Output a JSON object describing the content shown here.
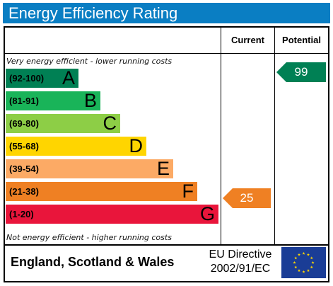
{
  "title": "Energy Efficiency Rating",
  "columns": {
    "current": "Current",
    "potential": "Potential"
  },
  "notes": {
    "top": "Very energy efficient - lower running costs",
    "bottom": "Not energy efficient - higher running costs"
  },
  "bands": [
    {
      "range": "(92-100)",
      "letter": "A",
      "color": "#008054"
    },
    {
      "range": "(81-91)",
      "letter": "B",
      "color": "#19b459"
    },
    {
      "range": "(69-80)",
      "letter": "C",
      "color": "#8dce46"
    },
    {
      "range": "(55-68)",
      "letter": "D",
      "color": "#ffd500"
    },
    {
      "range": "(39-54)",
      "letter": "E",
      "color": "#fcaa65"
    },
    {
      "range": "(21-38)",
      "letter": "F",
      "color": "#ef8023"
    },
    {
      "range": "(1-20)",
      "letter": "G",
      "color": "#e9153b"
    }
  ],
  "current": {
    "value": "25",
    "color": "#ef8023"
  },
  "potential": {
    "value": "99",
    "color": "#008054"
  },
  "footer": {
    "country": "England, Scotland & Wales",
    "directive_line1": "EU Directive",
    "directive_line2": "2002/91/EC"
  }
}
